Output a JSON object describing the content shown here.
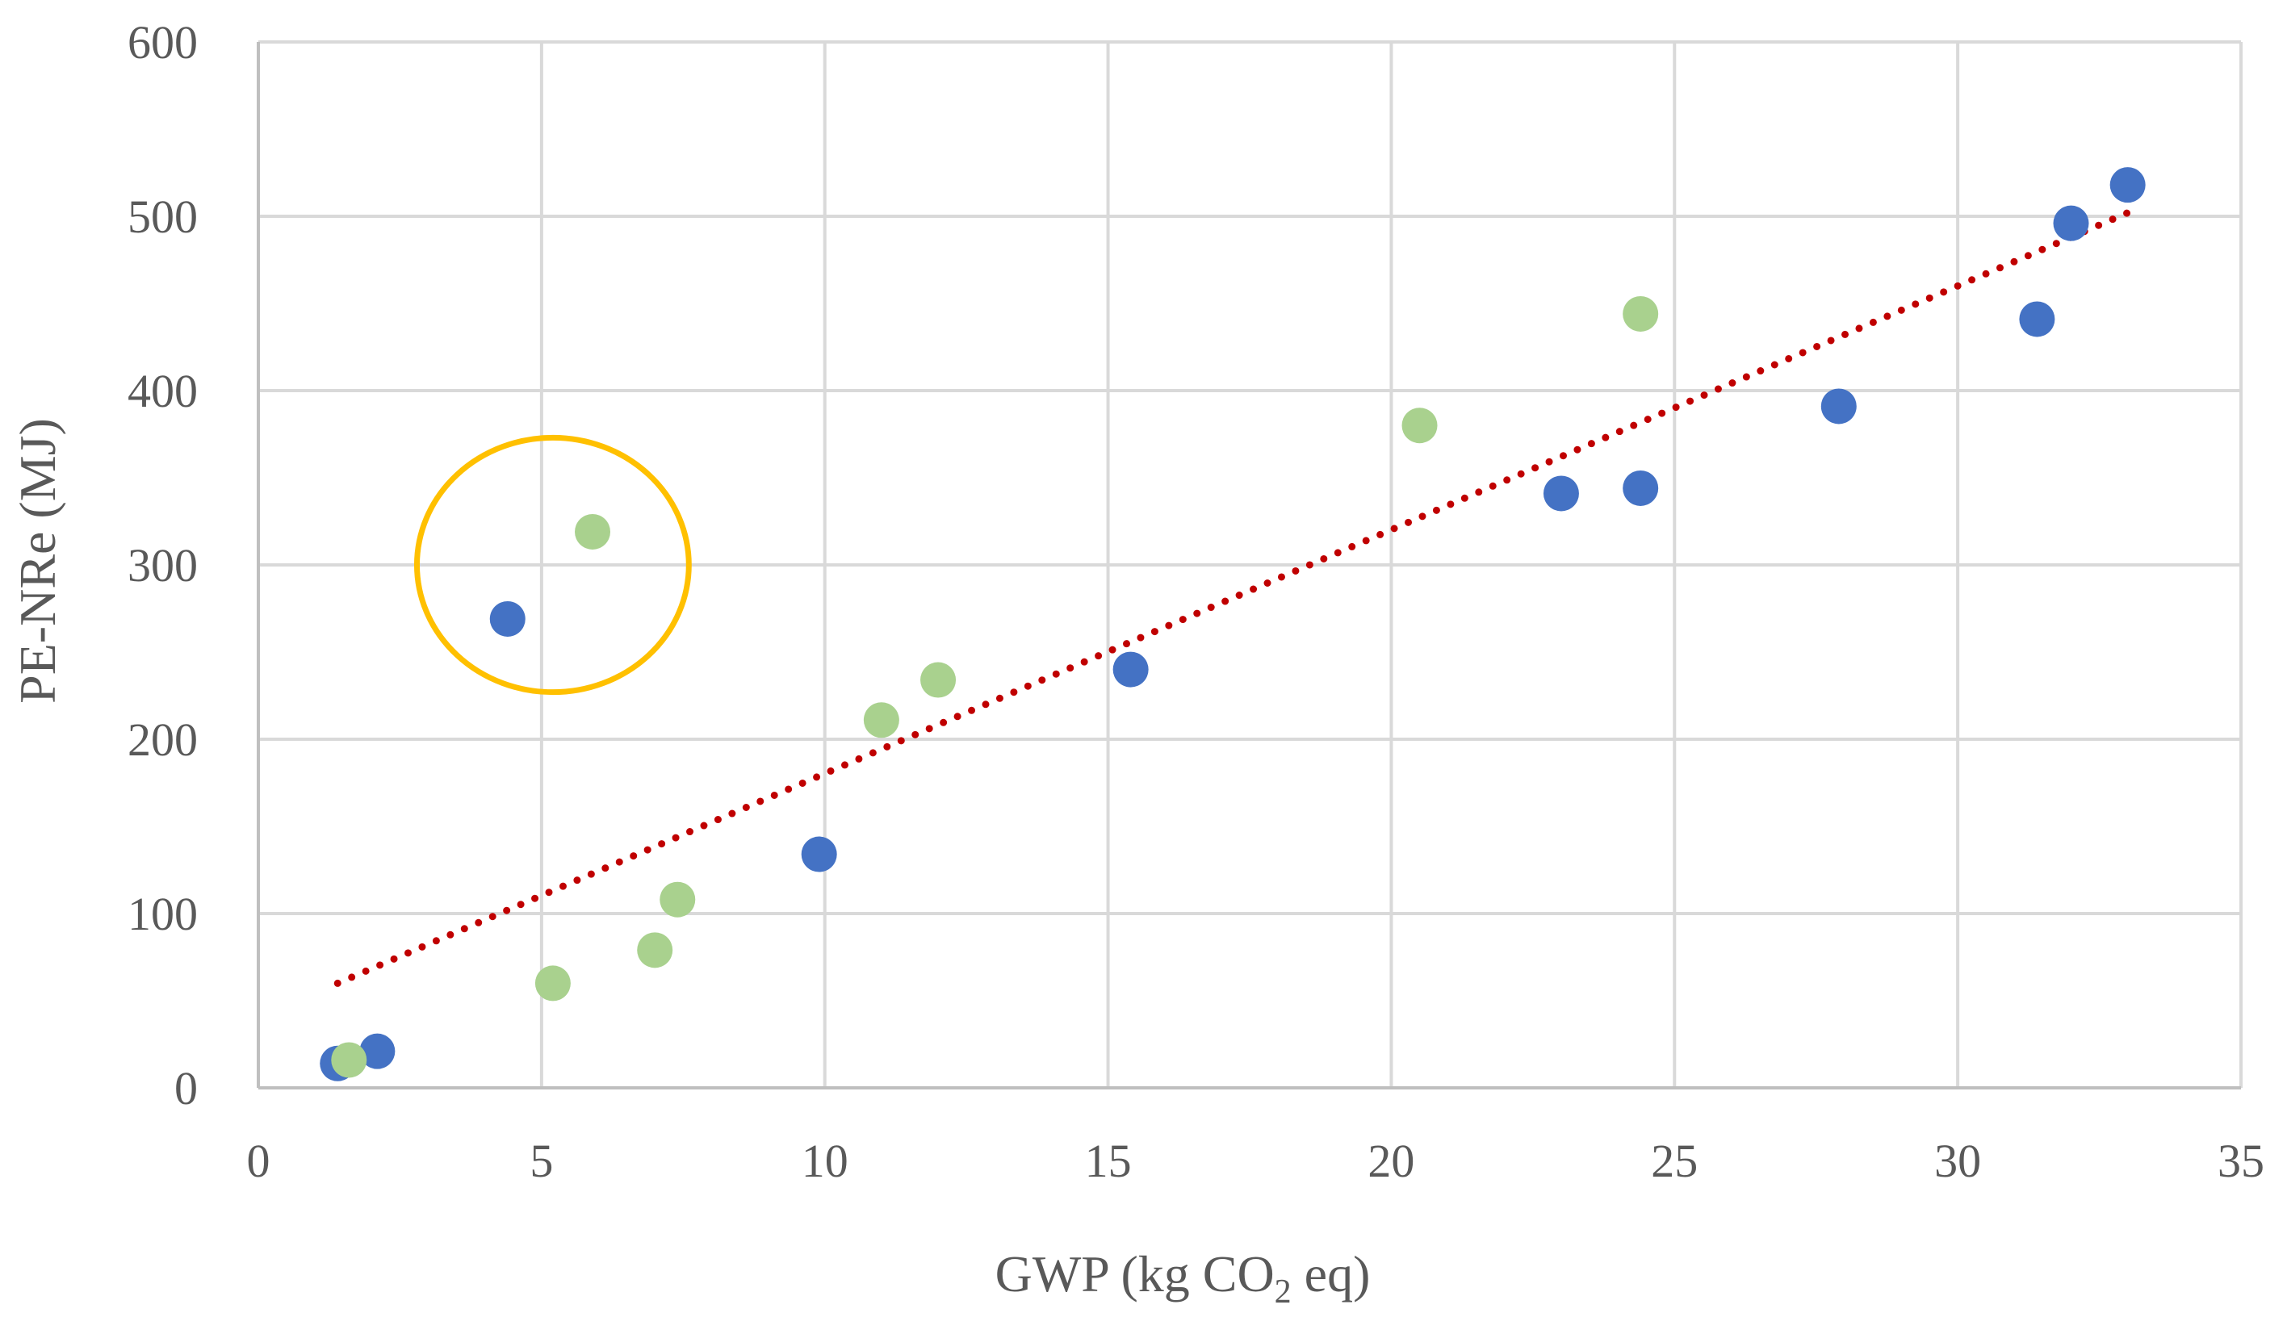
{
  "chart_data": {
    "type": "scatter",
    "title": "",
    "xlabel": {
      "prefix": "GWP (kg CO",
      "subscript": "2",
      "suffix": " eq)"
    },
    "ylabel": "PE-NRe (MJ)",
    "xlim": [
      0,
      35
    ],
    "ylim": [
      0,
      600
    ],
    "xticks": [
      0,
      5,
      10,
      15,
      20,
      25,
      30,
      35
    ],
    "yticks": [
      0,
      100,
      200,
      300,
      400,
      500,
      600
    ],
    "grid": true,
    "legend": "none",
    "series": [
      {
        "name": "blue",
        "color": "#4472C4",
        "points": [
          [
            1.4,
            14
          ],
          [
            2.1,
            21
          ],
          [
            4.4,
            269
          ],
          [
            9.9,
            134
          ],
          [
            15.4,
            240
          ],
          [
            23.0,
            341
          ],
          [
            24.4,
            344
          ],
          [
            27.9,
            391
          ],
          [
            31.4,
            441
          ],
          [
            32.0,
            496
          ],
          [
            33.0,
            518
          ]
        ]
      },
      {
        "name": "green",
        "color": "#A9D18E",
        "points": [
          [
            1.6,
            16
          ],
          [
            5.2,
            60
          ],
          [
            5.9,
            319
          ],
          [
            7.0,
            79
          ],
          [
            7.4,
            108
          ],
          [
            11.0,
            211
          ],
          [
            12.0,
            234
          ],
          [
            20.5,
            380
          ],
          [
            24.4,
            444
          ]
        ]
      }
    ],
    "trendline": {
      "type": "linear",
      "x": [
        1.4,
        33.0
      ],
      "y": [
        60,
        502
      ],
      "color": "#C00000",
      "style": "dotted"
    },
    "annotations": [
      {
        "type": "ellipse",
        "center": [
          5.2,
          300
        ],
        "radius_x": 2.4,
        "radius_y": 73,
        "color": "#FFC000"
      }
    ]
  }
}
